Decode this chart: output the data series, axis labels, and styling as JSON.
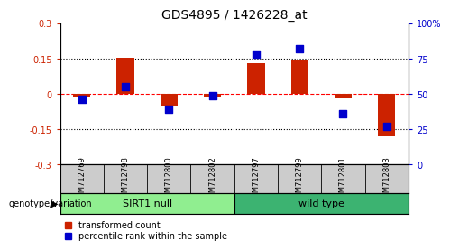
{
  "title": "GDS4895 / 1426228_at",
  "samples": [
    "GSM712769",
    "GSM712798",
    "GSM712800",
    "GSM712802",
    "GSM712797",
    "GSM712799",
    "GSM712801",
    "GSM712803"
  ],
  "red_values": [
    -0.01,
    0.153,
    -0.05,
    -0.01,
    0.13,
    0.142,
    -0.018,
    -0.18
  ],
  "blue_values": [
    46,
    55,
    39,
    49,
    78,
    82,
    36,
    27
  ],
  "groups": [
    {
      "label": "SIRT1 null",
      "start": 0,
      "end": 4,
      "color": "#90EE90"
    },
    {
      "label": "wild type",
      "start": 4,
      "end": 8,
      "color": "#3CB371"
    }
  ],
  "group_label": "genotype/variation",
  "ylim_left": [
    -0.3,
    0.3
  ],
  "ylim_right": [
    0,
    100
  ],
  "yticks_left": [
    -0.3,
    -0.15,
    0.0,
    0.15,
    0.3
  ],
  "yticks_right": [
    0,
    25,
    50,
    75,
    100
  ],
  "ytick_labels_left": [
    "-0.3",
    "-0.15",
    "0",
    "0.15",
    "0.3"
  ],
  "ytick_labels_right": [
    "0",
    "25",
    "50",
    "75",
    "100%"
  ],
  "bar_color": "#CC2200",
  "dot_color": "#0000CC",
  "bar_width": 0.4,
  "dot_size": 30,
  "legend_red": "transformed count",
  "legend_blue": "percentile rank within the sample",
  "background_color": "#FFFFFF",
  "title_fontsize": 10,
  "tick_fontsize": 7,
  "sample_fontsize": 6,
  "group_fontsize": 8,
  "legend_fontsize": 7
}
